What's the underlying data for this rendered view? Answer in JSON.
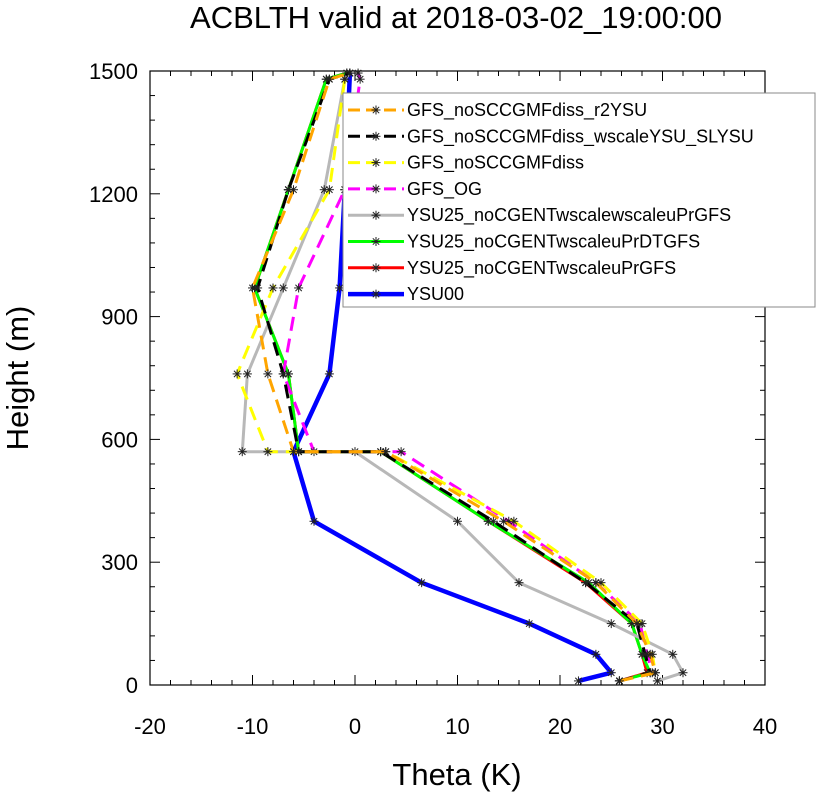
{
  "chart_data": {
    "type": "line",
    "title": "ACBLTH valid at 2018-03-02_19:00:00",
    "xlabel": "Theta (K)",
    "ylabel": "Height (m)",
    "xlim": [
      -20,
      40
    ],
    "ylim": [
      0,
      1500
    ],
    "xticks": [
      -20,
      -10,
      0,
      10,
      20,
      30,
      40
    ],
    "yticks": [
      0,
      300,
      600,
      900,
      1200,
      1500
    ],
    "legend_position": "top-right",
    "grid": false,
    "series": [
      {
        "name": "GFS_noSCCGMFdiss_r2YSU",
        "color": "#ffa500",
        "dash": "dashed",
        "x": [
          25.8,
          29.3,
          28.8,
          27.5,
          23.5,
          14.5,
          3.0,
          -6.0,
          -8.5,
          -10.0,
          -6.0,
          -2.5,
          -0.5
        ],
        "y": [
          10,
          30,
          75,
          150,
          250,
          400,
          570,
          570,
          760,
          970,
          1210,
          1480,
          1495
        ]
      },
      {
        "name": "GFS_noSCCGMFdiss_wscaleYSU_SLYSU",
        "color": "#000000",
        "dash": "dashed",
        "x": [
          25.8,
          28.8,
          28.3,
          27.5,
          22.5,
          13.5,
          2.5,
          -5.5,
          -7.0,
          -9.5,
          -6.5,
          -2.5,
          -0.5
        ],
        "y": [
          10,
          30,
          75,
          150,
          250,
          400,
          570,
          570,
          760,
          970,
          1210,
          1480,
          1495
        ]
      },
      {
        "name": "GFS_noSCCGMFdiss",
        "color": "#ffff00",
        "dash": "dashed",
        "x": [
          25.8,
          29.3,
          29.0,
          28.0,
          24.0,
          15.5,
          3.0,
          -8.5,
          -11.5,
          -8.0,
          -2.5,
          -1.0,
          -0.5
        ],
        "y": [
          10,
          30,
          75,
          150,
          250,
          400,
          570,
          570,
          760,
          970,
          1210,
          1480,
          1495
        ]
      },
      {
        "name": "GFS_OG",
        "color": "#ff00ff",
        "dash": "dashed",
        "x": [
          25.8,
          29.0,
          28.5,
          27.8,
          23.5,
          15.0,
          4.5,
          -4.0,
          -7.0,
          -5.5,
          -1.0,
          0.5,
          0.3
        ],
        "y": [
          10,
          30,
          75,
          150,
          250,
          400,
          570,
          570,
          760,
          970,
          1210,
          1480,
          1495
        ]
      },
      {
        "name": "YSU25_noCGENTwscalewscaleuPrGFS",
        "color": "#b8b8b8",
        "dash": "solid",
        "x": [
          29.5,
          32.0,
          31.0,
          25.0,
          16.0,
          10.0,
          0.0,
          -11.0,
          -10.5,
          -7.0,
          -3.0,
          -1.0,
          -0.5
        ],
        "y": [
          10,
          30,
          75,
          150,
          250,
          400,
          570,
          570,
          760,
          970,
          1210,
          1480,
          1495
        ]
      },
      {
        "name": "YSU25_noCGENTwscaleuPrDTGFS",
        "color": "#00ff00",
        "dash": "solid",
        "x": [
          25.8,
          28.8,
          28.0,
          27.0,
          22.8,
          13.0,
          2.5,
          -5.5,
          -6.5,
          -9.8,
          -6.5,
          -2.8,
          -0.8
        ],
        "y": [
          10,
          30,
          75,
          150,
          250,
          400,
          570,
          570,
          760,
          970,
          1210,
          1480,
          1495
        ]
      },
      {
        "name": "YSU25_noCGENTwscaleuPrGFS",
        "color": "#ff0000",
        "dash": "solid",
        "x": [
          25.8,
          28.5,
          28.0,
          27.0,
          22.5,
          13.0,
          2.5,
          -5.5,
          -6.5,
          -9.8,
          -6.5,
          -2.8,
          -0.8
        ],
        "y": [
          10,
          30,
          75,
          150,
          250,
          400,
          570,
          570,
          760,
          970,
          1210,
          1480,
          1495
        ]
      },
      {
        "name": "YSU00",
        "color": "#0000ff",
        "dash": "solid",
        "x": [
          21.8,
          25.0,
          23.5,
          17.0,
          6.5,
          -4.0,
          -6.0,
          -2.5,
          -1.5,
          -1.0,
          -0.5
        ],
        "y": [
          10,
          30,
          75,
          150,
          250,
          400,
          570,
          760,
          970,
          1210,
          1495
        ]
      }
    ]
  }
}
